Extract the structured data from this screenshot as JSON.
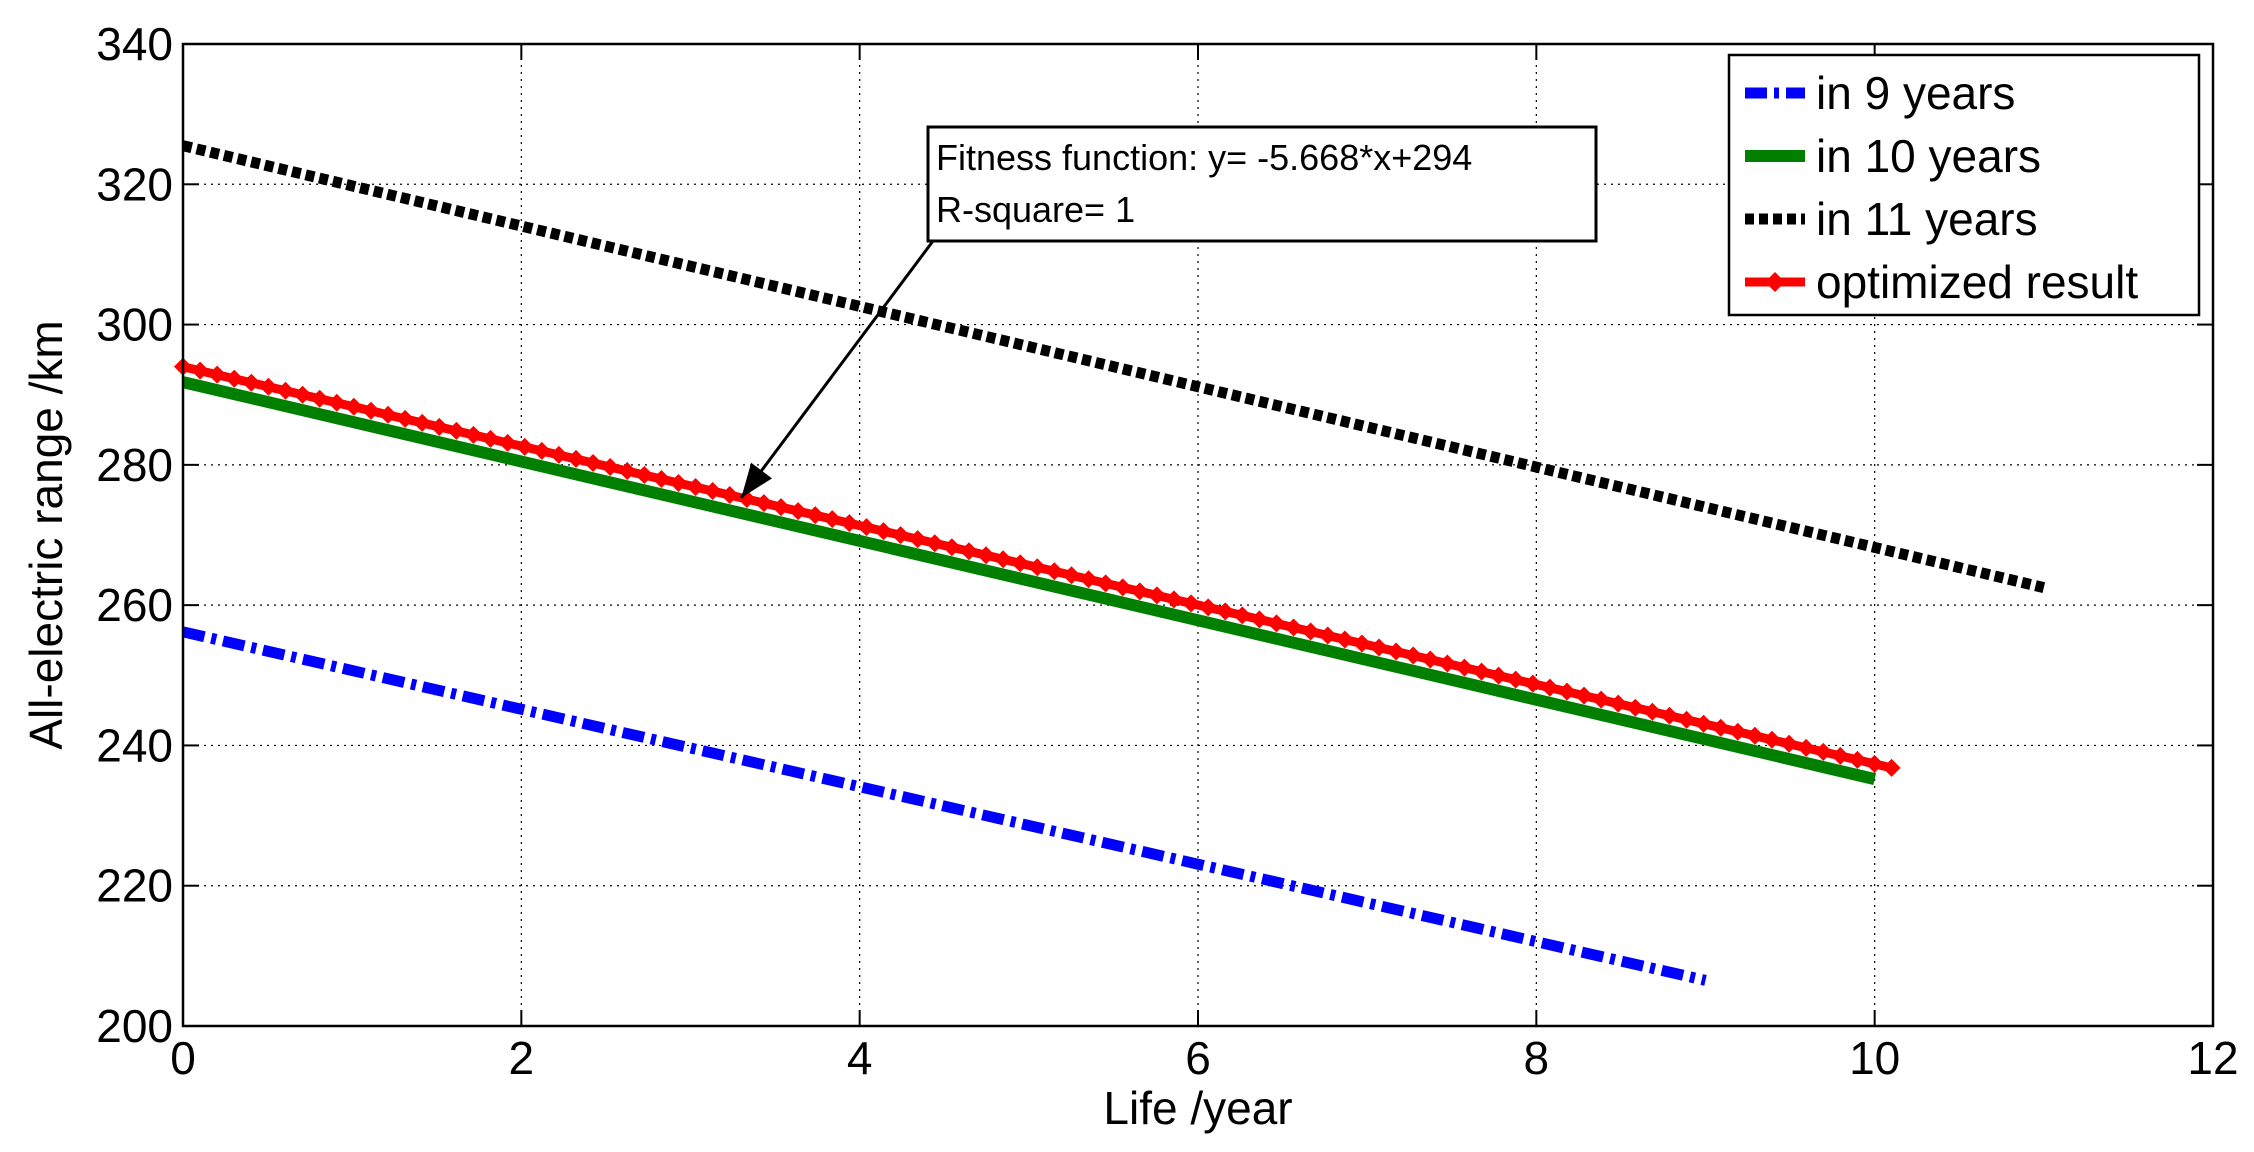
{
  "chart_data": {
    "type": "line",
    "title": "",
    "xlabel": "Life /year",
    "ylabel": "All-electric range /km",
    "xlim": [
      0,
      12
    ],
    "ylim": [
      200,
      340
    ],
    "xticks": [
      0,
      2,
      4,
      6,
      8,
      10,
      12
    ],
    "yticks": [
      200,
      220,
      240,
      260,
      280,
      300,
      320,
      340
    ],
    "grid": true,
    "legend_position": "top-right",
    "series": [
      {
        "name": "in 9 years",
        "color": "#0000FF",
        "style": "dash-dot",
        "x": [
          0,
          9
        ],
        "y": [
          256.2,
          206.5
        ]
      },
      {
        "name": "in 10 years",
        "color": "#007F00",
        "style": "solid",
        "x": [
          0,
          10
        ],
        "y": [
          291.8,
          235.2
        ]
      },
      {
        "name": "in 11 years",
        "color": "#000000",
        "style": "dotted",
        "x": [
          0,
          11
        ],
        "y": [
          325.5,
          262.5
        ]
      },
      {
        "name": "optimized result",
        "color": "#FF0000",
        "style": "solid-diamond-markers",
        "x": [
          0,
          10.1
        ],
        "y": [
          294.0,
          236.8
        ]
      }
    ],
    "annotation": {
      "lines": [
        "Fitness function: y= -5.668*x+294",
        "R-square= 1"
      ],
      "arrow_target": {
        "x": 3.3,
        "y": 275.3
      }
    }
  }
}
